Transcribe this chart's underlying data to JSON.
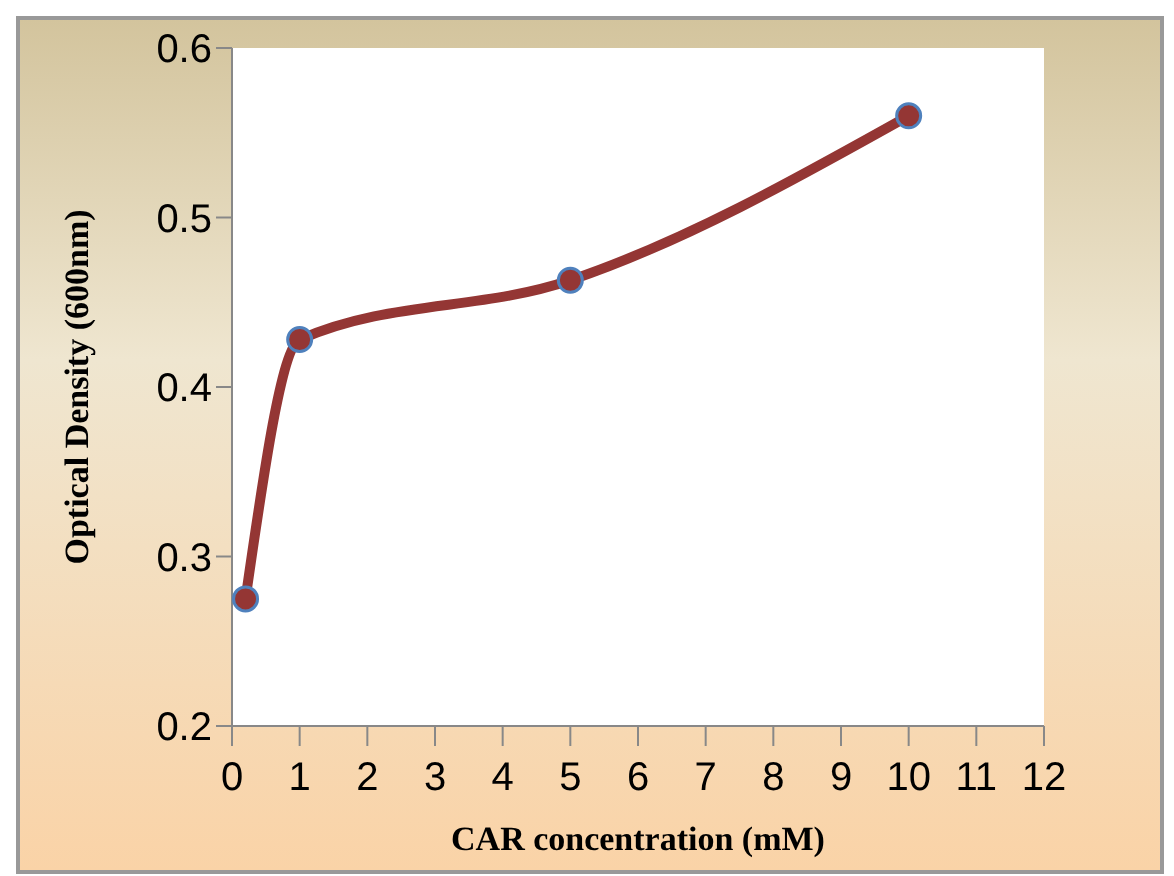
{
  "chart_data": {
    "type": "line",
    "xlabel": "CAR concentration (mM)",
    "ylabel": "Optical Density (600nm)",
    "x": [
      0.2,
      1,
      5,
      10
    ],
    "series": [
      {
        "color": "#943634",
        "values": [
          0.275,
          0.428,
          0.463,
          0.56
        ]
      }
    ],
    "xlim": [
      0,
      12
    ],
    "xticks": [
      0,
      1,
      2,
      3,
      4,
      5,
      6,
      7,
      8,
      9,
      10,
      11,
      12
    ],
    "ylim": [
      0.2,
      0.6
    ],
    "yticks": [
      0.2,
      0.3,
      0.4,
      0.5,
      0.6
    ],
    "marker": "circle",
    "legend": false
  }
}
